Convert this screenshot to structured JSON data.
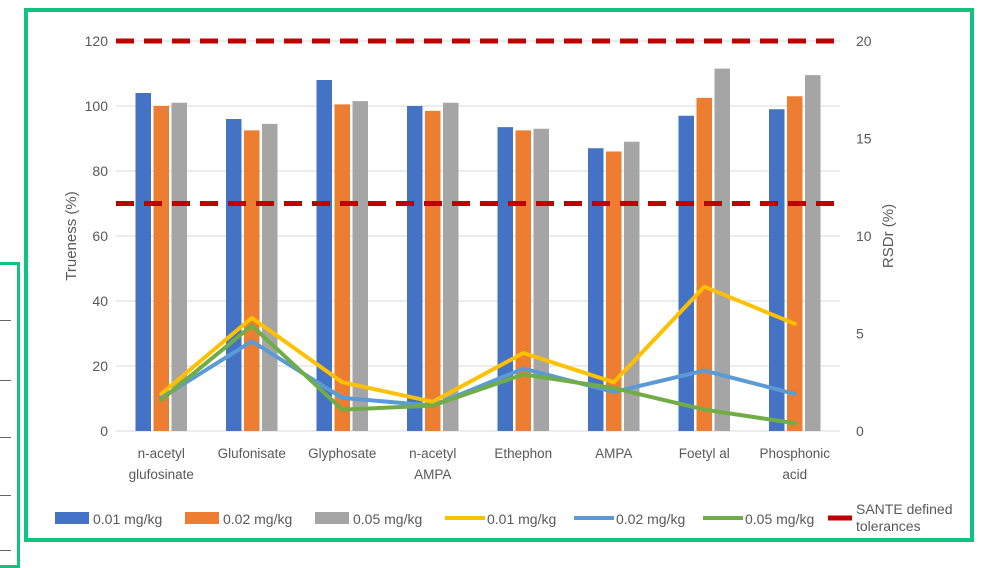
{
  "chart_data": {
    "type": "bar",
    "categories": [
      [
        "n-acetyl",
        "glufosinate"
      ],
      [
        "Glufonisate"
      ],
      [
        "Glyphosate"
      ],
      [
        "n-acetyl",
        "AMPA"
      ],
      [
        "Ethephon"
      ],
      [
        "AMPA"
      ],
      [
        "Foetyl al"
      ],
      [
        "Phosphonic",
        "acid"
      ]
    ],
    "ylabel": "Trueness (%)",
    "y2label": "RSDr (%)",
    "ylim": [
      0,
      120
    ],
    "y2lim": [
      0,
      20
    ],
    "yticks": [
      "0",
      "20",
      "40",
      "60",
      "80",
      "100",
      "120"
    ],
    "y2ticks": [
      "0",
      "5",
      "10",
      "15",
      "20"
    ],
    "bar_series": [
      {
        "name": "0.01 mg/kg",
        "color": "#4472c4",
        "values": [
          104,
          96,
          108,
          100,
          93.5,
          87,
          97,
          99
        ]
      },
      {
        "name": "0.02 mg/kg",
        "color": "#ed7d31",
        "values": [
          100,
          92.5,
          100.5,
          98.5,
          92.5,
          86,
          102.5,
          103
        ]
      },
      {
        "name": "0.05 mg/kg",
        "color": "#a5a5a5",
        "values": [
          101,
          94.5,
          101.5,
          101,
          93,
          89,
          111.5,
          109.5
        ]
      }
    ],
    "line_series": [
      {
        "name": "0.01 mg/kg",
        "color": "#ffc000",
        "values": [
          1.9,
          5.8,
          2.5,
          1.5,
          4.0,
          2.5,
          7.4,
          5.5
        ]
      },
      {
        "name": "0.02 mg/kg",
        "color": "#5b9bd5",
        "values": [
          1.7,
          4.6,
          1.7,
          1.3,
          3.2,
          2.0,
          3.1,
          1.9
        ]
      },
      {
        "name": "0.05 mg/kg",
        "color": "#70ad47",
        "values": [
          1.6,
          5.4,
          1.1,
          1.3,
          2.9,
          2.2,
          1.1,
          0.4
        ]
      }
    ],
    "reference_lines": {
      "name": "SANTE defined tolerances",
      "color": "#c00000",
      "values": [
        70,
        120
      ]
    },
    "legend_position": "bottom",
    "grid": "horizontal"
  }
}
